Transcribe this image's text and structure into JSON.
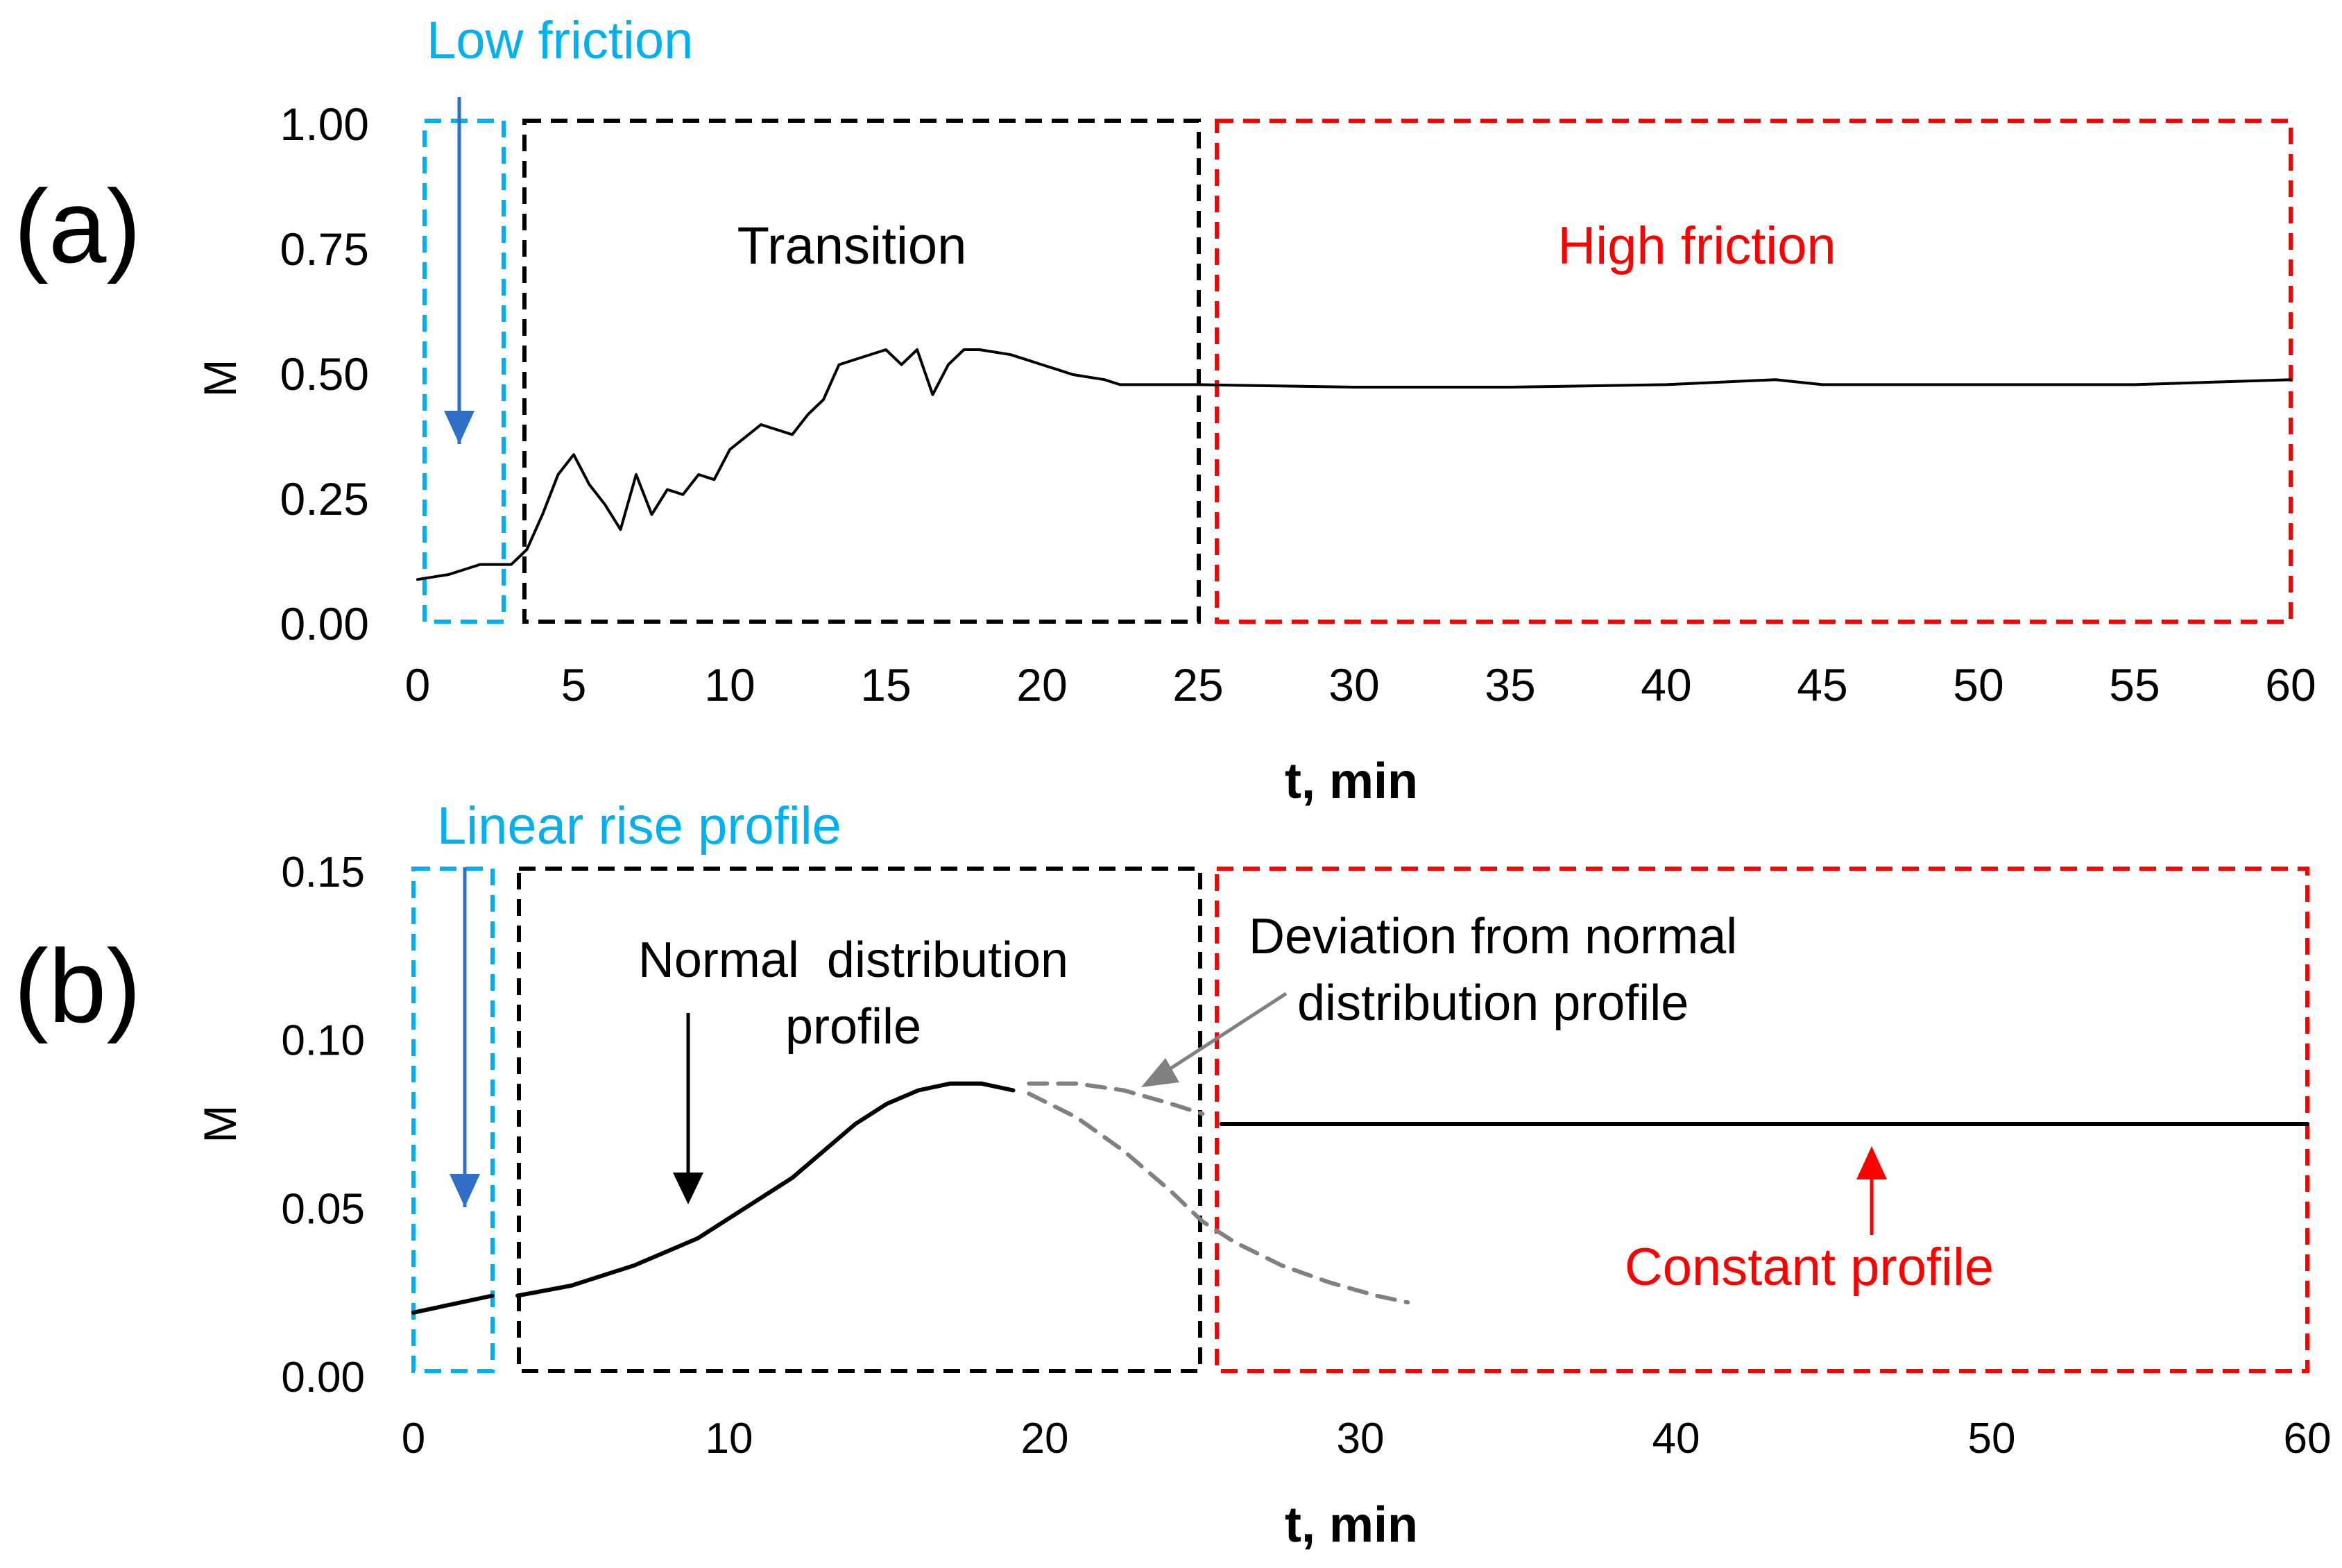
{
  "colors": {
    "axis": "#000000",
    "low_friction": "#00B0F0",
    "transition": "#000000",
    "high_friction": "#FF0000",
    "arrow_blue": "#2F6FC8",
    "deviation_gray": "#808080",
    "line": "#000000"
  },
  "chart_data": [
    {
      "panel_label": "(a)",
      "type": "line",
      "xlabel": "t, min",
      "ylabel": "M",
      "xlim": [
        0,
        60
      ],
      "ylim": [
        0,
        1
      ],
      "x_ticks": [
        "0",
        "5",
        "10",
        "15",
        "20",
        "25",
        "30",
        "35",
        "40",
        "45",
        "50",
        "55",
        "60"
      ],
      "y_ticks": [
        "0.00",
        "0.25",
        "0.50",
        "0.75",
        "1.00"
      ],
      "grid": false,
      "regions": [
        {
          "label": "Low friction",
          "x_range": [
            0.3,
            2.8
          ],
          "color": "#00B0F0"
        },
        {
          "label": "Transition",
          "x_range": [
            3.3,
            25.0
          ],
          "color": "#000000"
        },
        {
          "label": "High friction",
          "x_range": [
            25.6,
            60.0
          ],
          "color": "#FF0000"
        }
      ],
      "series": [
        {
          "x": [
            0,
            1,
            2,
            3,
            3.5,
            4,
            4.5,
            5,
            5.5,
            6,
            6.5,
            7,
            7.5,
            8,
            8.5,
            9,
            9.5,
            10,
            11,
            12,
            12.5,
            13,
            13.5,
            14,
            15,
            15.5,
            16,
            16.5,
            17,
            17.5,
            18,
            19,
            20,
            21,
            22,
            22.5,
            23,
            25,
            30,
            35,
            40,
            43.5,
            45,
            50,
            55,
            60
          ],
          "values": [
            0.09,
            0.1,
            0.12,
            0.12,
            0.15,
            0.22,
            0.3,
            0.34,
            0.28,
            0.24,
            0.19,
            0.3,
            0.22,
            0.27,
            0.26,
            0.3,
            0.29,
            0.35,
            0.4,
            0.38,
            0.42,
            0.45,
            0.52,
            0.53,
            0.55,
            0.52,
            0.55,
            0.46,
            0.52,
            0.55,
            0.55,
            0.54,
            0.52,
            0.5,
            0.49,
            0.48,
            0.48,
            0.48,
            0.475,
            0.475,
            0.48,
            0.49,
            0.48,
            0.48,
            0.48,
            0.49
          ]
        }
      ]
    },
    {
      "panel_label": "(b)",
      "type": "line",
      "xlabel": "t, min",
      "ylabel": "M",
      "xlim": [
        0,
        60
      ],
      "ylim": [
        0,
        0.15
      ],
      "x_ticks": [
        "0",
        "10",
        "20",
        "30",
        "40",
        "50",
        "60"
      ],
      "y_ticks": [
        "0.00",
        "0.05",
        "0.10",
        "0.15"
      ],
      "grid": false,
      "regions": [
        {
          "label": "Linear rise profile",
          "x_range": [
            0.0,
            2.5
          ],
          "color": "#00B0F0"
        },
        {
          "label": "Normal distribution profile",
          "x_range": [
            3.3,
            25.0
          ],
          "color": "#000000"
        },
        {
          "label": "Constant profile",
          "x_range": [
            25.6,
            60.0
          ],
          "color": "#FF0000"
        }
      ],
      "series": [
        {
          "segments": [
            {
              "x": [
                0,
                2.5
              ],
              "values": [
                0.019,
                0.024
              ]
            },
            {
              "x": [
                3.3,
                5,
                7,
                9,
                11,
                12,
                13,
                14,
                15,
                16,
                17,
                18,
                19
              ],
              "values": [
                0.024,
                0.027,
                0.033,
                0.041,
                0.053,
                0.059,
                0.067,
                0.075,
                0.081,
                0.085,
                0.087,
                0.087,
                0.085
              ]
            },
            {
              "x": [
                25.6,
                60
              ],
              "values": [
                0.075,
                0.075
              ]
            }
          ]
        },
        {
          "style": "dashed",
          "x": [
            19.5,
            21,
            22.5,
            24,
            25
          ],
          "values": [
            0.087,
            0.087,
            0.085,
            0.081,
            0.078
          ]
        },
        {
          "style": "dashed",
          "x": [
            19.5,
            21,
            22.5,
            24,
            25,
            26,
            27.5,
            29,
            30.5,
            31.5
          ],
          "values": [
            0.084,
            0.077,
            0.067,
            0.055,
            0.046,
            0.04,
            0.033,
            0.028,
            0.024,
            0.022
          ]
        }
      ],
      "annotations": [
        "Deviation from normal",
        "distribution profile"
      ]
    }
  ],
  "labels": {
    "panel_a": "(a)",
    "panel_b": "(b)",
    "ylabel_a": "M",
    "ylabel_b": "M",
    "xlabel_a": "t, min",
    "xlabel_b": "t, min",
    "low_friction": "Low friction",
    "transition": "Transition",
    "high_friction": "High friction",
    "linear_rise": "Linear rise profile",
    "normal_dist_line1": "Normal  distribution",
    "normal_dist_line2": "profile",
    "deviation_line1": "Deviation from normal",
    "deviation_line2": "distribution profile",
    "constant_profile": "Constant profile"
  }
}
